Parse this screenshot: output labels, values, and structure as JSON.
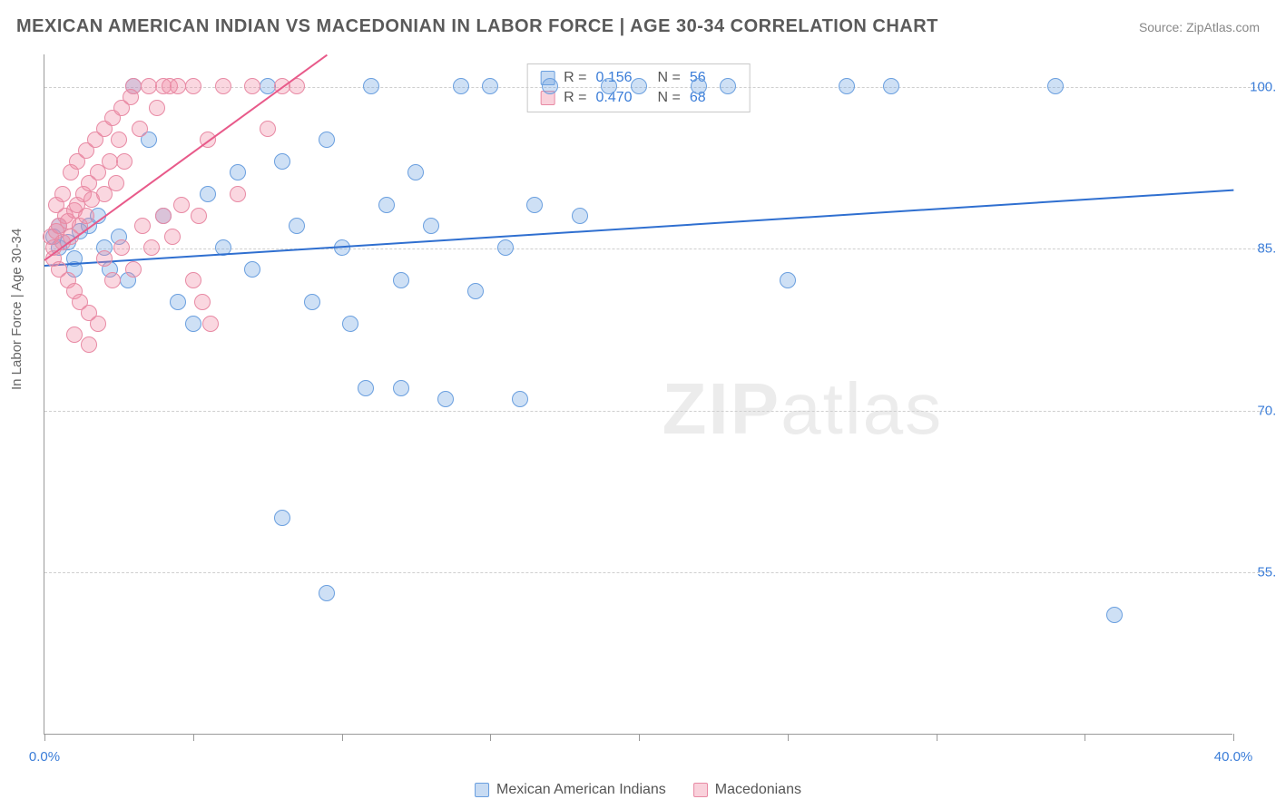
{
  "title": "MEXICAN AMERICAN INDIAN VS MACEDONIAN IN LABOR FORCE | AGE 30-34 CORRELATION CHART",
  "source": "Source: ZipAtlas.com",
  "y_axis_label": "In Labor Force | Age 30-34",
  "watermark_bold": "ZIP",
  "watermark_rest": "atlas",
  "chart": {
    "type": "scatter",
    "xlim": [
      0,
      40
    ],
    "ylim": [
      40,
      103
    ],
    "x_ticks": [
      0,
      5,
      10,
      15,
      20,
      25,
      30,
      35,
      40
    ],
    "x_tick_labels": {
      "0": "0.0%",
      "40": "40.0%"
    },
    "y_ticks": [
      55,
      70,
      85,
      100
    ],
    "y_tick_labels": {
      "55": "55.0%",
      "70": "70.0%",
      "85": "85.0%",
      "100": "100.0%"
    },
    "background_color": "#ffffff",
    "grid_color": "#cfcfcf",
    "marker_size": 18,
    "series": [
      {
        "id": "s1",
        "label": "Mexican American Indians",
        "color_fill": "rgba(115,165,225,0.35)",
        "color_stroke": "#6a9fdf",
        "trend_color": "#2f6fd0",
        "r": "0.156",
        "n": "56",
        "trend": {
          "x1": 0,
          "y1": 83.5,
          "x2": 40,
          "y2": 90.5
        },
        "points": [
          [
            0.3,
            86
          ],
          [
            0.5,
            85
          ],
          [
            0.8,
            85.5
          ],
          [
            1.0,
            84
          ],
          [
            1.2,
            86.5
          ],
          [
            1.5,
            87
          ],
          [
            1.8,
            88
          ],
          [
            2.0,
            85
          ],
          [
            2.2,
            83
          ],
          [
            2.5,
            86
          ],
          [
            2.8,
            82
          ],
          [
            3.0,
            100
          ],
          [
            3.5,
            95
          ],
          [
            4.0,
            88
          ],
          [
            4.5,
            80
          ],
          [
            5.0,
            78
          ],
          [
            5.5,
            90
          ],
          [
            6.0,
            85
          ],
          [
            6.5,
            92
          ],
          [
            7.0,
            83
          ],
          [
            7.5,
            100
          ],
          [
            8.0,
            93
          ],
          [
            8.5,
            87
          ],
          [
            9.0,
            80
          ],
          [
            9.5,
            95
          ],
          [
            10.0,
            85
          ],
          [
            10.3,
            78
          ],
          [
            10.8,
            72
          ],
          [
            11.0,
            100
          ],
          [
            11.5,
            89
          ],
          [
            12.0,
            82
          ],
          [
            12.5,
            92
          ],
          [
            13.0,
            87
          ],
          [
            13.5,
            71
          ],
          [
            14.0,
            100
          ],
          [
            14.5,
            81
          ],
          [
            15.0,
            100
          ],
          [
            15.5,
            85
          ],
          [
            16.0,
            71
          ],
          [
            16.5,
            89
          ],
          [
            17.0,
            100
          ],
          [
            18.0,
            88
          ],
          [
            19.0,
            100
          ],
          [
            20.0,
            100
          ],
          [
            22.0,
            100
          ],
          [
            23.0,
            100
          ],
          [
            25.0,
            82
          ],
          [
            27.0,
            100
          ],
          [
            28.5,
            100
          ],
          [
            8.0,
            60
          ],
          [
            9.5,
            53
          ],
          [
            12.0,
            72
          ],
          [
            36.0,
            51
          ],
          [
            34.0,
            100
          ],
          [
            0.5,
            87
          ],
          [
            1.0,
            83
          ]
        ]
      },
      {
        "id": "s2",
        "label": "Macedonians",
        "color_fill": "rgba(240,140,165,0.35)",
        "color_stroke": "#e88aa4",
        "trend_color": "#e85a8a",
        "r": "0.470",
        "n": "68",
        "trend": {
          "x1": 0,
          "y1": 84,
          "x2": 9.5,
          "y2": 103
        },
        "points": [
          [
            0.2,
            86
          ],
          [
            0.3,
            85
          ],
          [
            0.4,
            86.5
          ],
          [
            0.5,
            87
          ],
          [
            0.6,
            85.5
          ],
          [
            0.7,
            88
          ],
          [
            0.8,
            87.5
          ],
          [
            0.9,
            86
          ],
          [
            1.0,
            88.5
          ],
          [
            1.1,
            89
          ],
          [
            1.2,
            87
          ],
          [
            1.3,
            90
          ],
          [
            1.4,
            88
          ],
          [
            1.5,
            91
          ],
          [
            1.6,
            89.5
          ],
          [
            1.8,
            92
          ],
          [
            2.0,
            90
          ],
          [
            2.2,
            93
          ],
          [
            2.4,
            91
          ],
          [
            2.5,
            95
          ],
          [
            2.7,
            93
          ],
          [
            3.0,
            100
          ],
          [
            3.2,
            96
          ],
          [
            3.5,
            100
          ],
          [
            3.8,
            98
          ],
          [
            4.0,
            100
          ],
          [
            4.2,
            100
          ],
          [
            4.5,
            100
          ],
          [
            5.0,
            100
          ],
          [
            5.2,
            88
          ],
          [
            5.5,
            95
          ],
          [
            6.0,
            100
          ],
          [
            6.5,
            90
          ],
          [
            7.0,
            100
          ],
          [
            7.5,
            96
          ],
          [
            8.0,
            100
          ],
          [
            8.5,
            100
          ],
          [
            0.3,
            84
          ],
          [
            0.5,
            83
          ],
          [
            0.8,
            82
          ],
          [
            1.0,
            81
          ],
          [
            1.2,
            80
          ],
          [
            1.5,
            79
          ],
          [
            1.8,
            78
          ],
          [
            2.0,
            84
          ],
          [
            2.3,
            82
          ],
          [
            2.6,
            85
          ],
          [
            3.0,
            83
          ],
          [
            3.3,
            87
          ],
          [
            3.6,
            85
          ],
          [
            4.0,
            88
          ],
          [
            4.3,
            86
          ],
          [
            4.6,
            89
          ],
          [
            5.0,
            82
          ],
          [
            5.3,
            80
          ],
          [
            5.6,
            78
          ],
          [
            0.4,
            89
          ],
          [
            0.6,
            90
          ],
          [
            0.9,
            92
          ],
          [
            1.1,
            93
          ],
          [
            1.4,
            94
          ],
          [
            1.7,
            95
          ],
          [
            2.0,
            96
          ],
          [
            2.3,
            97
          ],
          [
            2.6,
            98
          ],
          [
            2.9,
            99
          ],
          [
            1.0,
            77
          ],
          [
            1.5,
            76
          ]
        ]
      }
    ]
  },
  "stats_prefix_r": "R =",
  "stats_prefix_n": "N =",
  "legend": {
    "series1": "Mexican American Indians",
    "series2": "Macedonians"
  }
}
